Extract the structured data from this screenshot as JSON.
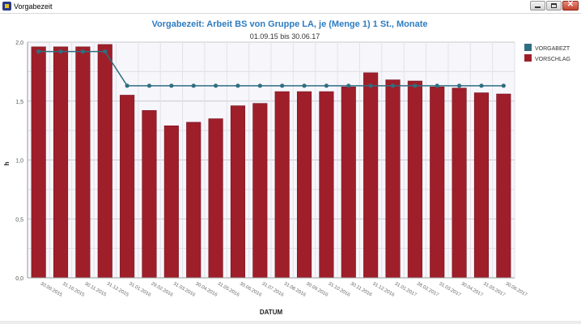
{
  "window": {
    "title": "Vorgabezeit"
  },
  "chart_data": {
    "type": "bar",
    "title": "Vorgabezeit: Arbeit BS von Gruppe LA, je (Menge 1) 1 St., Monate",
    "subtitle": "01.09.15 bis 30.06.17",
    "xlabel": "DATUM",
    "ylabel": "h",
    "ylim": [
      0,
      2.0
    ],
    "yticks": [
      "0,0",
      "0,5",
      "1,0",
      "1,5",
      "2,0"
    ],
    "grid": true,
    "legend_position": "top-right",
    "categories": [
      "30.09.2015",
      "31.10.2015",
      "30.11.2015",
      "31.12.2015",
      "31.01.2016",
      "29.02.2016",
      "31.03.2016",
      "30.04.2016",
      "31.05.2016",
      "30.06.2016",
      "31.07.2016",
      "31.08.2016",
      "30.09.2016",
      "31.10.2016",
      "30.11.2016",
      "31.12.2016",
      "31.01.2017",
      "28.02.2017",
      "31.03.2017",
      "30.04.2017",
      "31.05.2017",
      "30.06.2017"
    ],
    "series": [
      {
        "name": "VORGABEZT",
        "kind": "line",
        "color": "#2f6e80",
        "values": [
          1.92,
          1.92,
          1.92,
          1.92,
          1.63,
          1.63,
          1.63,
          1.63,
          1.63,
          1.63,
          1.63,
          1.63,
          1.63,
          1.63,
          1.63,
          1.63,
          1.63,
          1.63,
          1.63,
          1.63,
          1.63,
          1.63
        ]
      },
      {
        "name": "VORSCHLAG",
        "kind": "bar",
        "color": "#9e1f2a",
        "values": [
          1.96,
          1.96,
          1.96,
          1.98,
          1.55,
          1.42,
          1.29,
          1.32,
          1.35,
          1.46,
          1.48,
          1.58,
          1.58,
          1.58,
          1.62,
          1.74,
          1.68,
          1.67,
          1.62,
          1.61,
          1.57,
          1.56
        ]
      }
    ]
  }
}
